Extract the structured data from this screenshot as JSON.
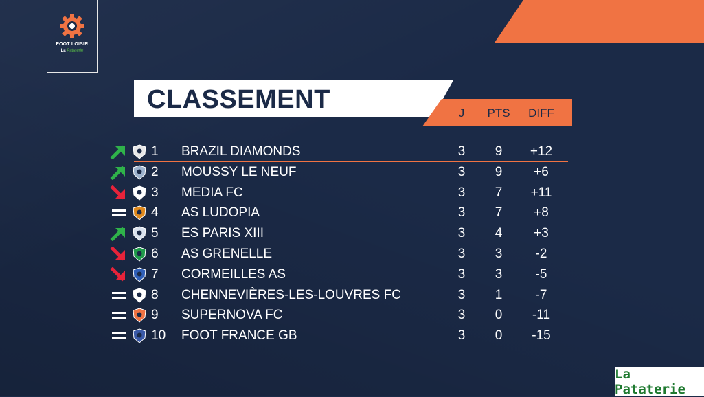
{
  "brand": {
    "logo_name": "FOOT LOISIR",
    "logo_sub_prefix": "La",
    "logo_sub_script": "Pataterie",
    "sponsor": "La Pataterie",
    "accent": "#f07343",
    "background": "#1b2a47",
    "sponsor_green": "#1f7a30"
  },
  "title": "CLASSEMENT",
  "columns": {
    "j": "J",
    "pts": "PTS",
    "diff": "DIFF"
  },
  "rows": [
    {
      "trend": "up",
      "pos": "1",
      "team": "BRAZIL DIAMONDS",
      "j": "3",
      "pts": "9",
      "diff": "+12",
      "crest": "diamond-crest-icon"
    },
    {
      "trend": "up",
      "pos": "2",
      "team": "MOUSSY LE NEUF",
      "j": "3",
      "pts": "9",
      "diff": "+6",
      "crest": "moussy-crest-icon"
    },
    {
      "trend": "down",
      "pos": "3",
      "team": "MEDIA FC",
      "j": "3",
      "pts": "7",
      "diff": "+11",
      "crest": "media-crest-icon"
    },
    {
      "trend": "same",
      "pos": "4",
      "team": "AS LUDOPIA",
      "j": "3",
      "pts": "7",
      "diff": "+8",
      "crest": "ludopia-crest-icon"
    },
    {
      "trend": "up",
      "pos": "5",
      "team": "ES PARIS XIII",
      "j": "3",
      "pts": "4",
      "diff": "+3",
      "crest": "paris-crest-icon"
    },
    {
      "trend": "down",
      "pos": "6",
      "team": "AS GRENELLE",
      "j": "3",
      "pts": "3",
      "diff": "-2",
      "crest": "grenelle-crest-icon"
    },
    {
      "trend": "down",
      "pos": "7",
      "team": "CORMEILLES AS",
      "j": "3",
      "pts": "3",
      "diff": "-5",
      "crest": "cormeilles-crest-icon"
    },
    {
      "trend": "same",
      "pos": "8",
      "team": "CHENNEVIÈRES-LES-LOUVRES FC",
      "j": "3",
      "pts": "1",
      "diff": "-7",
      "crest": "chennevieres-crest-icon"
    },
    {
      "trend": "same",
      "pos": "9",
      "team": "SUPERNOVA FC",
      "j": "3",
      "pts": "0",
      "diff": "-11",
      "crest": "supernova-crest-icon"
    },
    {
      "trend": "same",
      "pos": "10",
      "team": "FOOT FRANCE GB",
      "j": "3",
      "pts": "0",
      "diff": "-15",
      "crest": "foot-france-crest-icon"
    }
  ]
}
